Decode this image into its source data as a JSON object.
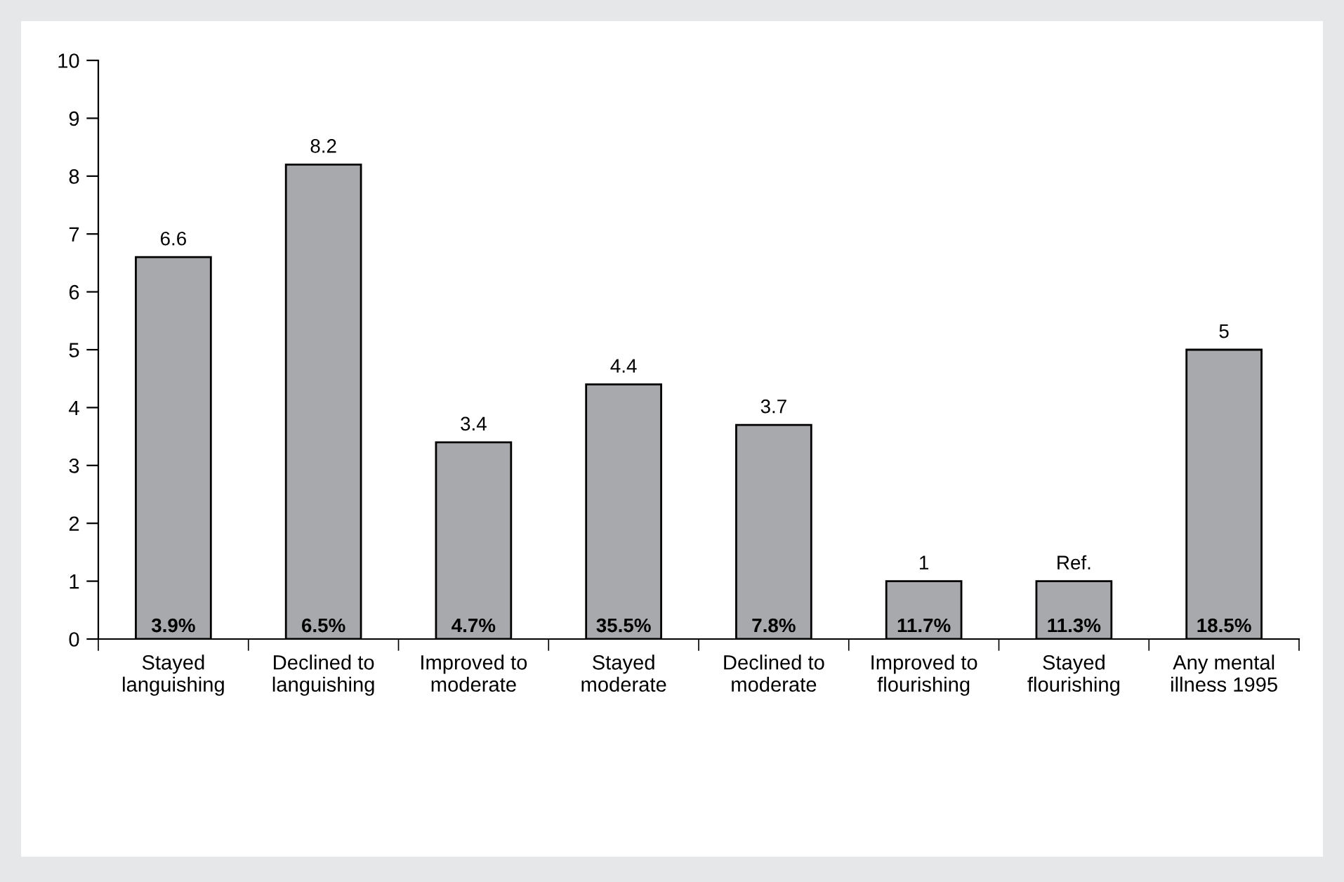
{
  "chart_data": {
    "type": "bar",
    "categories": [
      "Stayed\nlanguishing",
      "Declined to\nlanguishing",
      "Improved to\nmoderate",
      "Stayed\nmoderate",
      "Declined to\nmoderate",
      "Improved to\nflourishing",
      "Stayed\nflourishing",
      "Any mental\nillness 1995"
    ],
    "values": [
      6.6,
      8.2,
      3.4,
      4.4,
      3.7,
      1,
      1,
      5
    ],
    "value_labels": [
      "6.6",
      "8.2",
      "3.4",
      "4.4",
      "3.7",
      "1",
      "Ref.",
      "5"
    ],
    "color": "#a7a9ac",
    "ylim": [
      0,
      10
    ],
    "yticks": [
      0,
      1,
      2,
      3,
      4,
      5,
      6,
      7,
      8,
      9,
      10
    ],
    "grid": false,
    "annotations": [
      {
        "text": "3.9%",
        "x": "Stayed\nlanguishing",
        "y": 0
      },
      {
        "text": "6.5%",
        "x": "Declined to\nlanguishing",
        "y": 0
      },
      {
        "text": "4.7%",
        "x": "Improved to\nmoderate",
        "y": 0
      },
      {
        "text": "35.5%",
        "x": "Stayed\nmoderate",
        "y": 0
      },
      {
        "text": "7.8%",
        "x": "Declined to\nmoderate",
        "y": 0
      },
      {
        "text": "11.7%",
        "x": "Improved to\nflourishing",
        "y": 0
      },
      {
        "text": "11.3%",
        "x": "Stayed\nflourishing",
        "y": 0
      },
      {
        "text": "18.5%",
        "x": "Any mental\nillness 1995",
        "y": 0
      }
    ]
  }
}
